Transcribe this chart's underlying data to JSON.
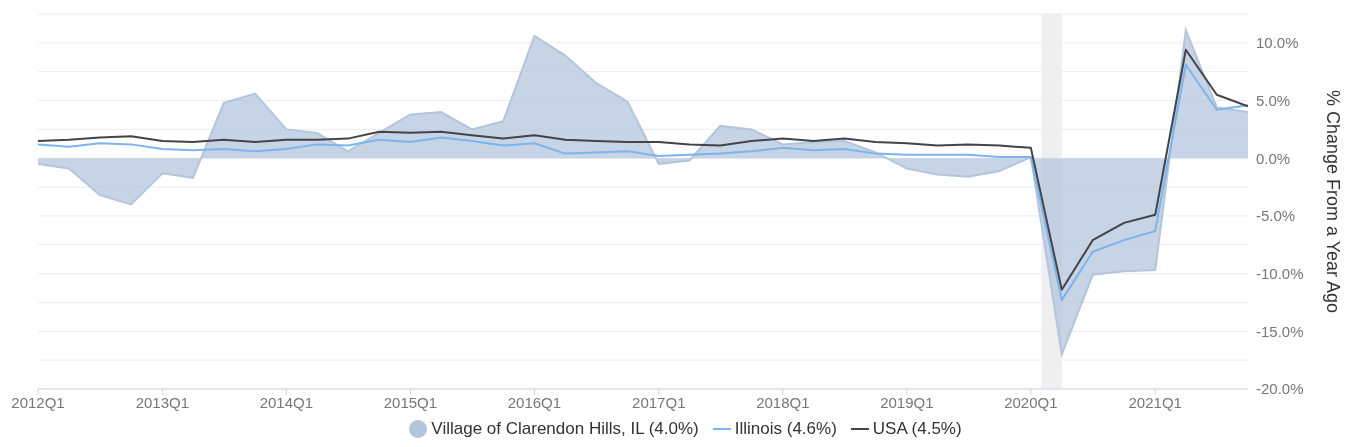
{
  "chart_data": {
    "type": "line",
    "ylabel": "% Change From a Year Ago",
    "x": [
      "2012-01-01",
      "2012-04-01",
      "2012-07-01",
      "2012-10-01",
      "2013-01-01",
      "2013-04-01",
      "2013-07-01",
      "2013-10-01",
      "2014-01-01",
      "2014-04-01",
      "2014-07-01",
      "2014-10-01",
      "2015-01-01",
      "2015-04-01",
      "2015-07-01",
      "2015-10-01",
      "2016-01-01",
      "2016-04-01",
      "2016-07-01",
      "2016-10-01",
      "2017-01-01",
      "2017-04-01",
      "2017-07-01",
      "2017-10-01",
      "2018-01-01",
      "2018-04-01",
      "2018-07-01",
      "2018-10-01",
      "2019-01-01",
      "2019-04-01",
      "2019-07-01",
      "2019-10-01",
      "2020-01-01",
      "2020-04-01",
      "2020-07-01",
      "2020-10-01",
      "2021-01-01",
      "2021-04-01",
      "2021-07-01",
      "2021-10-01"
    ],
    "series": [
      {
        "name": "Village of Clarendon Hills, IL (4.0%)",
        "type": "area",
        "color": "#b3c5dc",
        "values": [
          -0.5,
          -0.9,
          -3.2,
          -4.0,
          -1.3,
          -1.7,
          4.8,
          5.6,
          2.5,
          2.2,
          0.6,
          2.2,
          3.8,
          4.0,
          2.5,
          3.2,
          10.6,
          8.9,
          6.5,
          4.9,
          -0.5,
          -0.2,
          2.8,
          2.5,
          1.2,
          1.4,
          1.5,
          0.5,
          -0.9,
          -1.4,
          -1.6,
          -1.1,
          0.1,
          -17.0,
          -10.1,
          -9.8,
          -9.7,
          11.1,
          4.4,
          4.0
        ]
      },
      {
        "name": "Illinois (4.6%)",
        "color": "#7cb5ec",
        "values": [
          1.2,
          1.0,
          1.3,
          1.2,
          0.8,
          0.7,
          0.8,
          0.6,
          0.8,
          1.2,
          1.1,
          1.6,
          1.4,
          1.8,
          1.5,
          1.1,
          1.3,
          0.4,
          0.5,
          0.6,
          0.2,
          0.3,
          0.4,
          0.6,
          0.9,
          0.7,
          0.8,
          0.4,
          0.3,
          0.3,
          0.3,
          0.1,
          0.1,
          -12.3,
          -8.1,
          -7.1,
          -6.3,
          8.1,
          4.2,
          4.6
        ]
      },
      {
        "name": "USA (4.5%)",
        "color": "#434348",
        "values": [
          1.5,
          1.6,
          1.8,
          1.9,
          1.5,
          1.4,
          1.6,
          1.4,
          1.6,
          1.6,
          1.7,
          2.3,
          2.2,
          2.3,
          2.0,
          1.7,
          2.0,
          1.6,
          1.5,
          1.4,
          1.4,
          1.2,
          1.1,
          1.5,
          1.7,
          1.5,
          1.7,
          1.4,
          1.3,
          1.1,
          1.2,
          1.1,
          0.9,
          -11.4,
          -7.1,
          -5.6,
          -4.9,
          9.4,
          5.5,
          4.5
        ]
      }
    ],
    "xlim": [
      "2012-01-01",
      "2021-10-01"
    ],
    "xticks": [
      {
        "value": "2012-01-01",
        "label": "2012Q1"
      },
      {
        "value": "2013-01-01",
        "label": "2013Q1"
      },
      {
        "value": "2014-01-01",
        "label": "2014Q1"
      },
      {
        "value": "2015-01-01",
        "label": "2015Q1"
      },
      {
        "value": "2016-01-01",
        "label": "2016Q1"
      },
      {
        "value": "2017-01-01",
        "label": "2017Q1"
      },
      {
        "value": "2018-01-01",
        "label": "2018Q1"
      },
      {
        "value": "2019-01-01",
        "label": "2019Q1"
      },
      {
        "value": "2020-01-01",
        "label": "2020Q1"
      },
      {
        "value": "2021-01-01",
        "label": "2021Q1"
      }
    ],
    "ylim": [
      -20,
      12.5
    ],
    "yticks": [
      {
        "value": -20,
        "label": "-20.0%"
      },
      {
        "value": -17.5,
        "label": null
      },
      {
        "value": -15,
        "label": "-15.0%"
      },
      {
        "value": -12.5,
        "label": null
      },
      {
        "value": -10,
        "label": "-10.0%"
      },
      {
        "value": -7.5,
        "label": null
      },
      {
        "value": -5,
        "label": "-5.0%"
      },
      {
        "value": -2.5,
        "label": null
      },
      {
        "value": 0,
        "label": "0.0%"
      },
      {
        "value": 2.5,
        "label": null
      },
      {
        "value": 5,
        "label": "5.0%"
      },
      {
        "value": 7.5,
        "label": null
      },
      {
        "value": 10,
        "label": "10.0%"
      },
      {
        "value": 12.5,
        "label": null
      }
    ],
    "bands": [
      {
        "axis": "x",
        "from": "2020-02-01",
        "to": "2020-04-01",
        "color": "#efefef"
      }
    ],
    "grid": "y",
    "legend": "bottom"
  }
}
